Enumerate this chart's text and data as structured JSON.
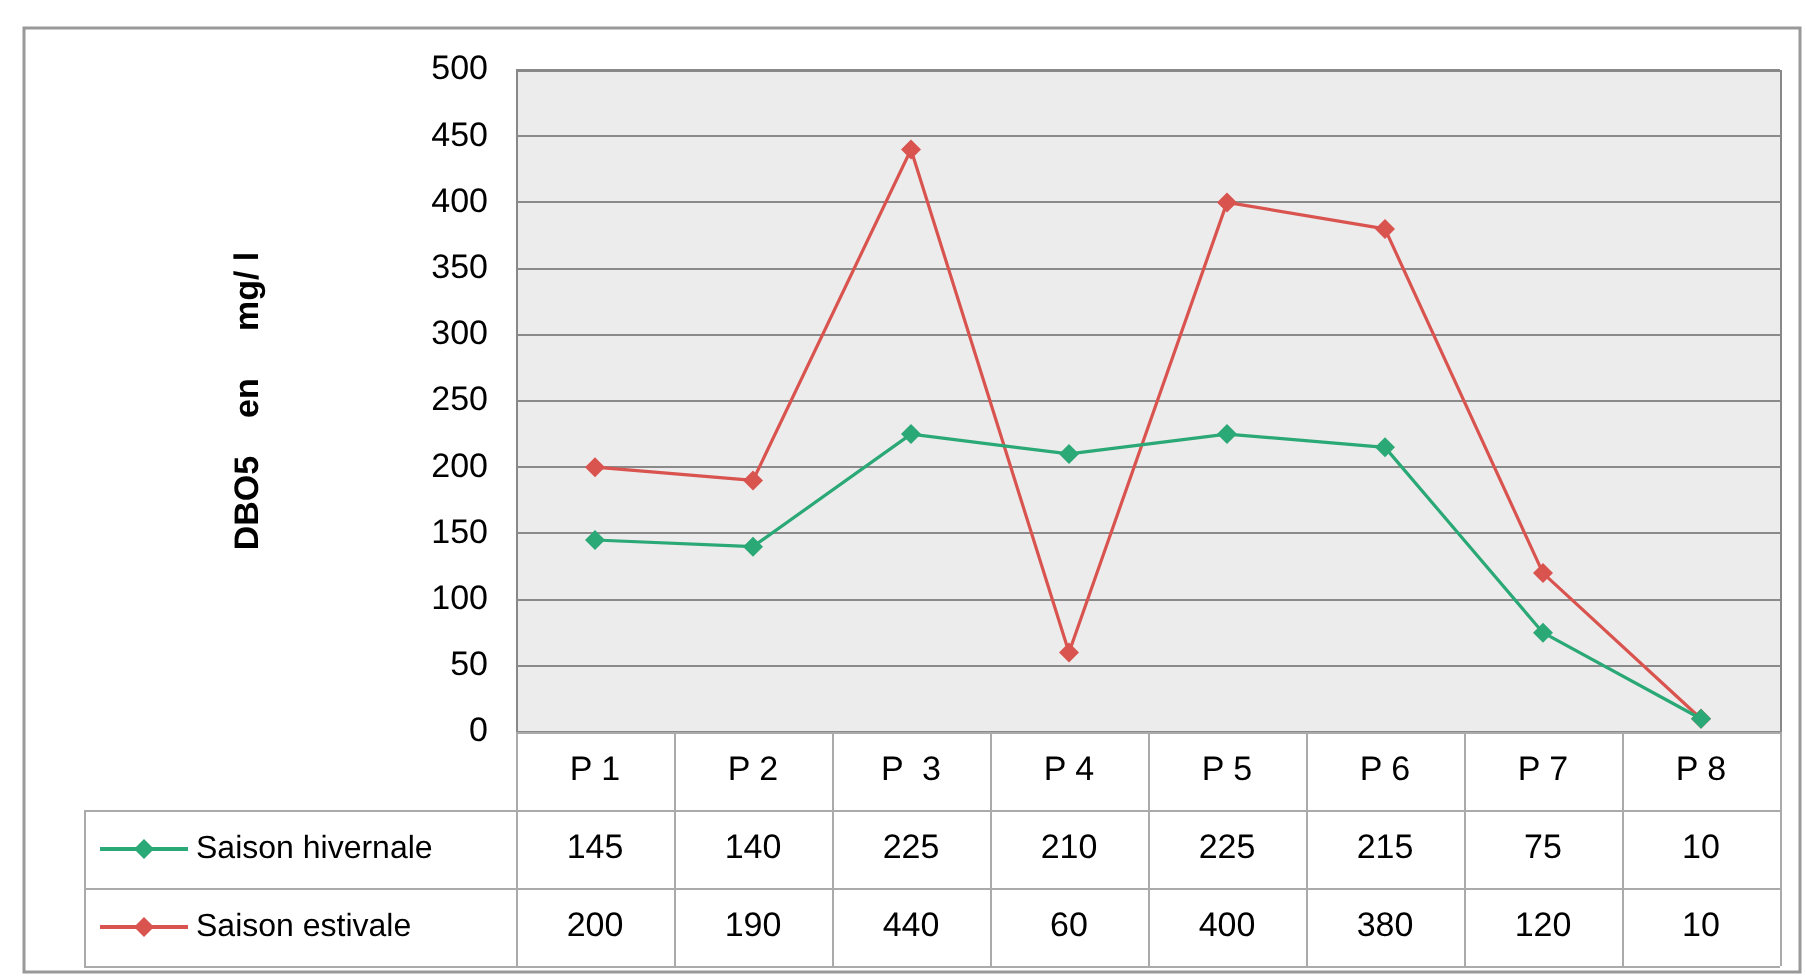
{
  "chart_data": {
    "type": "line",
    "ylabel": "DBO5    en     mg/ l",
    "categories": [
      "P 1",
      "P 2",
      "P  3",
      "P 4",
      "P 5",
      "P 6",
      "P 7",
      "P 8"
    ],
    "series": [
      {
        "name": "Saison hivernale",
        "color": "#2aa876",
        "values": [
          145,
          140,
          225,
          210,
          225,
          215,
          75,
          10
        ]
      },
      {
        "name": "Saison estivale",
        "color": "#d9534f",
        "values": [
          200,
          190,
          440,
          60,
          400,
          380,
          120,
          10
        ]
      }
    ],
    "ylim": [
      0,
      500
    ],
    "yticks": [
      0,
      50,
      100,
      150,
      200,
      250,
      300,
      350,
      400,
      450,
      500
    ],
    "grid": "y",
    "legend": "bottom",
    "marker": "diamond",
    "line_style": "solid",
    "data_labels": true
  }
}
